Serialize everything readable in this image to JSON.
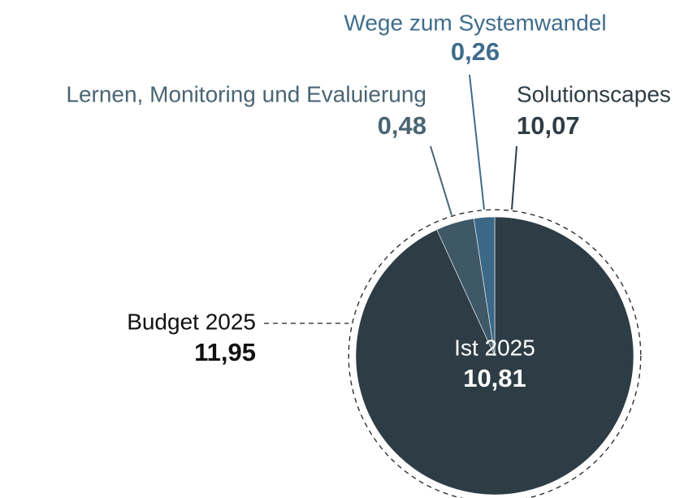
{
  "chart_data": {
    "type": "pie",
    "categories": [
      "Solutionscapes",
      "Lernen, Monitoring und Evaluierung",
      "Wege zum Systemwandel"
    ],
    "values": [
      10.07,
      0.48,
      0.26
    ],
    "value_labels": [
      "10,07",
      "0,48",
      "0,26"
    ],
    "colors": [
      "#2e3d45",
      "#3e5868",
      "#3b6886"
    ],
    "label_colors": [
      "#2e3d45",
      "#4a6573",
      "#3f6d8c"
    ],
    "total": {
      "label": "Ist 2025",
      "value": 10.81,
      "value_label": "10,81"
    },
    "budget": {
      "label": "Budget 2025",
      "value": 11.95,
      "value_label": "11,95"
    }
  }
}
